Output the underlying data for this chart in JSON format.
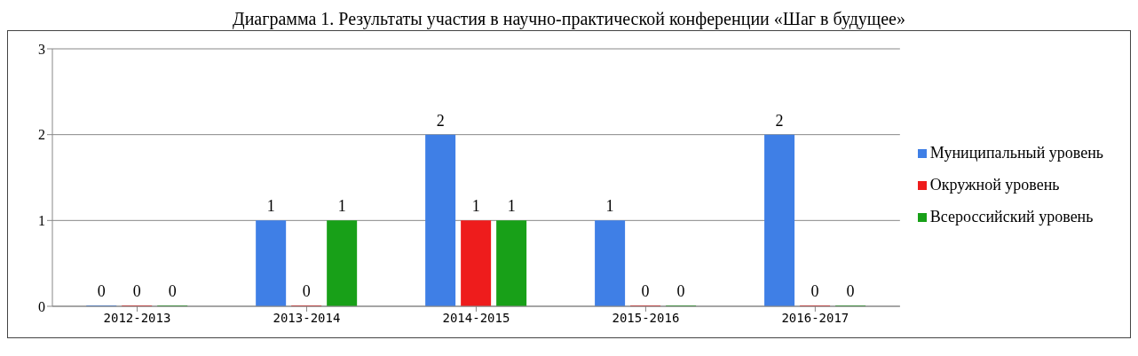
{
  "chart_data": {
    "type": "bar",
    "title": "Диаграмма 1. Результаты участия в научно-практической конференции «Шаг в будущее»",
    "categories": [
      "2012-2013",
      "2013-2014",
      "2014-2015",
      "2015-2016",
      "2016-2017"
    ],
    "series": [
      {
        "name": "Муниципальный уровень",
        "color": "#3f7fe6",
        "values": [
          0,
          1,
          2,
          1,
          2
        ]
      },
      {
        "name": "Окружной уровень",
        "color": "#ee1c1c",
        "values": [
          0,
          0,
          1,
          0,
          0
        ]
      },
      {
        "name": "Всероссийский уровень",
        "color": "#18a018",
        "values": [
          0,
          1,
          1,
          0,
          0
        ]
      }
    ],
    "ylim": [
      0,
      3
    ],
    "yticks": [
      0,
      1,
      2,
      3
    ],
    "grid": "y",
    "legend": "right",
    "data_labels": true
  }
}
